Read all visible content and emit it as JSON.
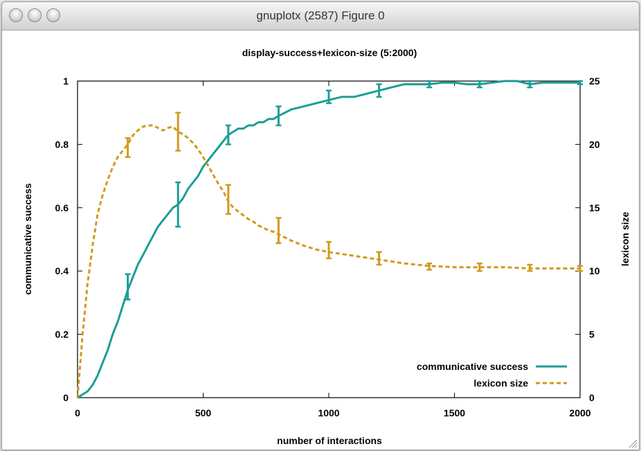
{
  "window": {
    "title": "gnuplotx (2587) Figure 0"
  },
  "colors": {
    "success": "#1a9e96",
    "lexicon": "#d19a1e",
    "axis": "#000000"
  },
  "chart_data": {
    "type": "line",
    "title": "display-success+lexicon-size (5:2000)",
    "xlabel": "number of interactions",
    "ylabel": "communicative success",
    "y2label": "lexicon size",
    "xlim": [
      0,
      2000
    ],
    "ylim": [
      0,
      1
    ],
    "y2lim": [
      0,
      25
    ],
    "x_ticks": [
      0,
      500,
      1000,
      1500,
      2000
    ],
    "y_ticks": [
      "0",
      "0.2",
      "0.4",
      "0.6",
      "0.8",
      "1"
    ],
    "y2_ticks": [
      0,
      5,
      10,
      15,
      20,
      25
    ],
    "legend_position": "bottom-right",
    "series": [
      {
        "name": "communicative success",
        "axis": "left",
        "style": "solid",
        "x": [
          0,
          20,
          40,
          60,
          80,
          100,
          120,
          140,
          160,
          180,
          200,
          220,
          240,
          260,
          280,
          300,
          320,
          340,
          360,
          380,
          400,
          420,
          440,
          460,
          480,
          500,
          520,
          540,
          560,
          580,
          600,
          620,
          640,
          660,
          680,
          700,
          720,
          740,
          760,
          780,
          800,
          850,
          900,
          950,
          1000,
          1050,
          1100,
          1150,
          1200,
          1250,
          1300,
          1350,
          1400,
          1450,
          1500,
          1550,
          1600,
          1650,
          1700,
          1750,
          1800,
          1850,
          1900,
          1950,
          2000
        ],
        "y": [
          0.0,
          0.01,
          0.02,
          0.04,
          0.07,
          0.11,
          0.15,
          0.2,
          0.24,
          0.29,
          0.34,
          0.38,
          0.42,
          0.45,
          0.48,
          0.51,
          0.54,
          0.56,
          0.58,
          0.6,
          0.61,
          0.63,
          0.66,
          0.68,
          0.7,
          0.73,
          0.75,
          0.77,
          0.79,
          0.81,
          0.83,
          0.84,
          0.85,
          0.85,
          0.86,
          0.86,
          0.87,
          0.87,
          0.88,
          0.88,
          0.89,
          0.91,
          0.92,
          0.93,
          0.94,
          0.95,
          0.95,
          0.96,
          0.97,
          0.98,
          0.99,
          0.99,
          0.99,
          0.995,
          0.995,
          0.99,
          0.99,
          0.995,
          1.0,
          1.0,
          0.99,
          0.995,
          0.995,
          0.995,
          0.995
        ]
      },
      {
        "name": "lexicon size",
        "axis": "right",
        "style": "dashed",
        "x": [
          0,
          20,
          40,
          60,
          80,
          100,
          120,
          140,
          160,
          180,
          200,
          220,
          240,
          260,
          280,
          300,
          320,
          340,
          360,
          380,
          400,
          420,
          440,
          460,
          480,
          500,
          520,
          540,
          560,
          580,
          600,
          620,
          640,
          660,
          680,
          700,
          720,
          740,
          760,
          780,
          800,
          850,
          900,
          950,
          1000,
          1100,
          1200,
          1300,
          1400,
          1500,
          1600,
          1700,
          1800,
          1900,
          2000
        ],
        "y": [
          0,
          5,
          9,
          12,
          14.5,
          16,
          17.2,
          18.2,
          19,
          19.5,
          20,
          20.7,
          21.1,
          21.4,
          21.5,
          21.5,
          21.3,
          21.1,
          21.3,
          21.4,
          21,
          20.8,
          20.5,
          20.1,
          19.6,
          19,
          18.3,
          17.6,
          16.9,
          16.3,
          15.5,
          15.0,
          14.7,
          14.4,
          14.1,
          13.9,
          13.6,
          13.4,
          13.2,
          13.1,
          12.9,
          12.4,
          12.0,
          11.7,
          11.5,
          11.2,
          10.9,
          10.6,
          10.4,
          10.3,
          10.3,
          10.3,
          10.2,
          10.2,
          10.2
        ]
      }
    ],
    "error_bars": [
      {
        "series": "communicative success",
        "x": 200,
        "low": 0.31,
        "high": 0.39
      },
      {
        "series": "communicative success",
        "x": 400,
        "low": 0.54,
        "high": 0.68
      },
      {
        "series": "communicative success",
        "x": 600,
        "low": 0.8,
        "high": 0.86
      },
      {
        "series": "communicative success",
        "x": 800,
        "low": 0.86,
        "high": 0.92
      },
      {
        "series": "communicative success",
        "x": 1000,
        "low": 0.93,
        "high": 0.97
      },
      {
        "series": "communicative success",
        "x": 1200,
        "low": 0.95,
        "high": 0.99
      },
      {
        "series": "communicative success",
        "x": 1400,
        "low": 0.98,
        "high": 1.0
      },
      {
        "series": "communicative success",
        "x": 1600,
        "low": 0.98,
        "high": 1.0
      },
      {
        "series": "communicative success",
        "x": 1800,
        "low": 0.98,
        "high": 1.0
      },
      {
        "series": "communicative success",
        "x": 2000,
        "low": 0.99,
        "high": 1.0
      },
      {
        "series": "lexicon size",
        "x": 200,
        "low": 19.0,
        "high": 20.5
      },
      {
        "series": "lexicon size",
        "x": 400,
        "low": 19.5,
        "high": 22.5
      },
      {
        "series": "lexicon size",
        "x": 600,
        "low": 14.5,
        "high": 16.8
      },
      {
        "series": "lexicon size",
        "x": 800,
        "low": 12.2,
        "high": 14.2
      },
      {
        "series": "lexicon size",
        "x": 1000,
        "low": 11.0,
        "high": 12.3
      },
      {
        "series": "lexicon size",
        "x": 1200,
        "low": 10.5,
        "high": 11.5
      },
      {
        "series": "lexicon size",
        "x": 1400,
        "low": 10.1,
        "high": 10.6
      },
      {
        "series": "lexicon size",
        "x": 1600,
        "low": 10.0,
        "high": 10.6
      },
      {
        "series": "lexicon size",
        "x": 1800,
        "low": 10.0,
        "high": 10.5
      },
      {
        "series": "lexicon size",
        "x": 2000,
        "low": 10.0,
        "high": 10.4
      }
    ]
  }
}
